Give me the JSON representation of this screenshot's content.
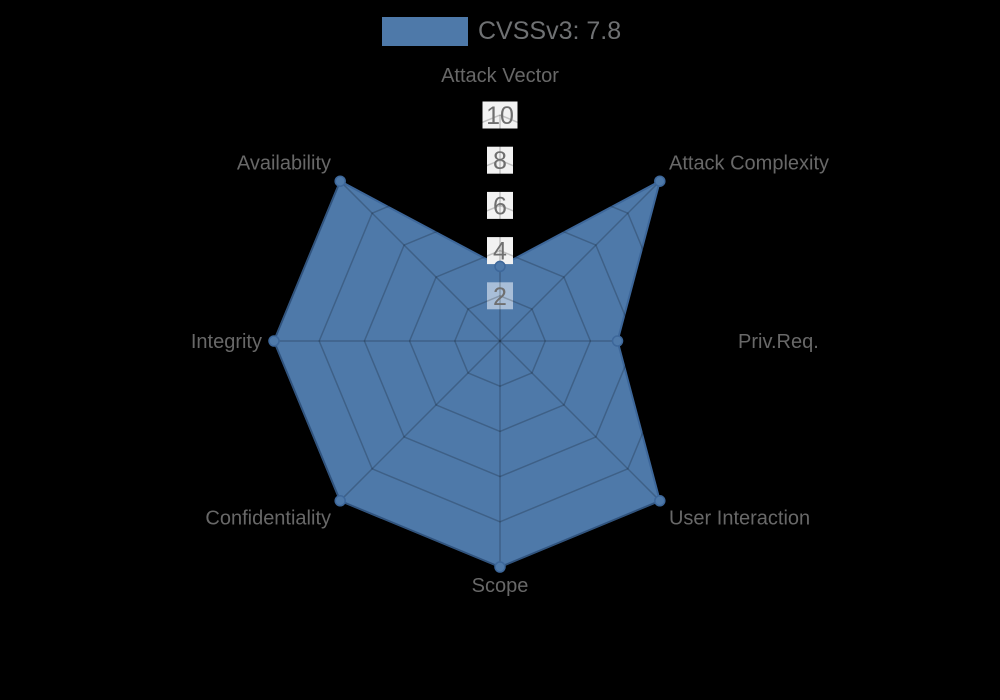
{
  "legend": {
    "label": "CVSSv3: 7.8",
    "swatch_color": "#4e79a9",
    "position": "top-center"
  },
  "chart_data": {
    "type": "radar",
    "title": "CVSSv3: 7.8",
    "categories": [
      "Attack Vector",
      "Attack Complexity",
      "Priv.Req.",
      "User Interaction",
      "Scope",
      "Confidentiality",
      "Integrity",
      "Availability"
    ],
    "series": [
      {
        "name": "CVSSv3: 7.8",
        "values": [
          3.3,
          10,
          5.2,
          10,
          10,
          10,
          10,
          10
        ]
      }
    ],
    "ticks": [
      "2",
      "4",
      "6",
      "8",
      "10"
    ],
    "tick_values": [
      2,
      4,
      6,
      8,
      10
    ],
    "tick_box_colors": [
      "#a8bed8",
      "#f2f2f2",
      "#f2f2f2",
      "#f2f2f2",
      "#f2f2f2"
    ],
    "range": [
      0,
      10
    ],
    "grid": "polygonal web rings + 8 spokes, visible only over filled area",
    "legend_position": "top-center",
    "colors": {
      "background": "#000000",
      "series_fill": "#4e79a9",
      "series_stroke": "#3d679a",
      "grid_line": "rgba(0,0,0,0.2)",
      "axis_label": "#686868",
      "tick_label": "#6f6f6f",
      "legend_text": "#6f7173"
    }
  }
}
